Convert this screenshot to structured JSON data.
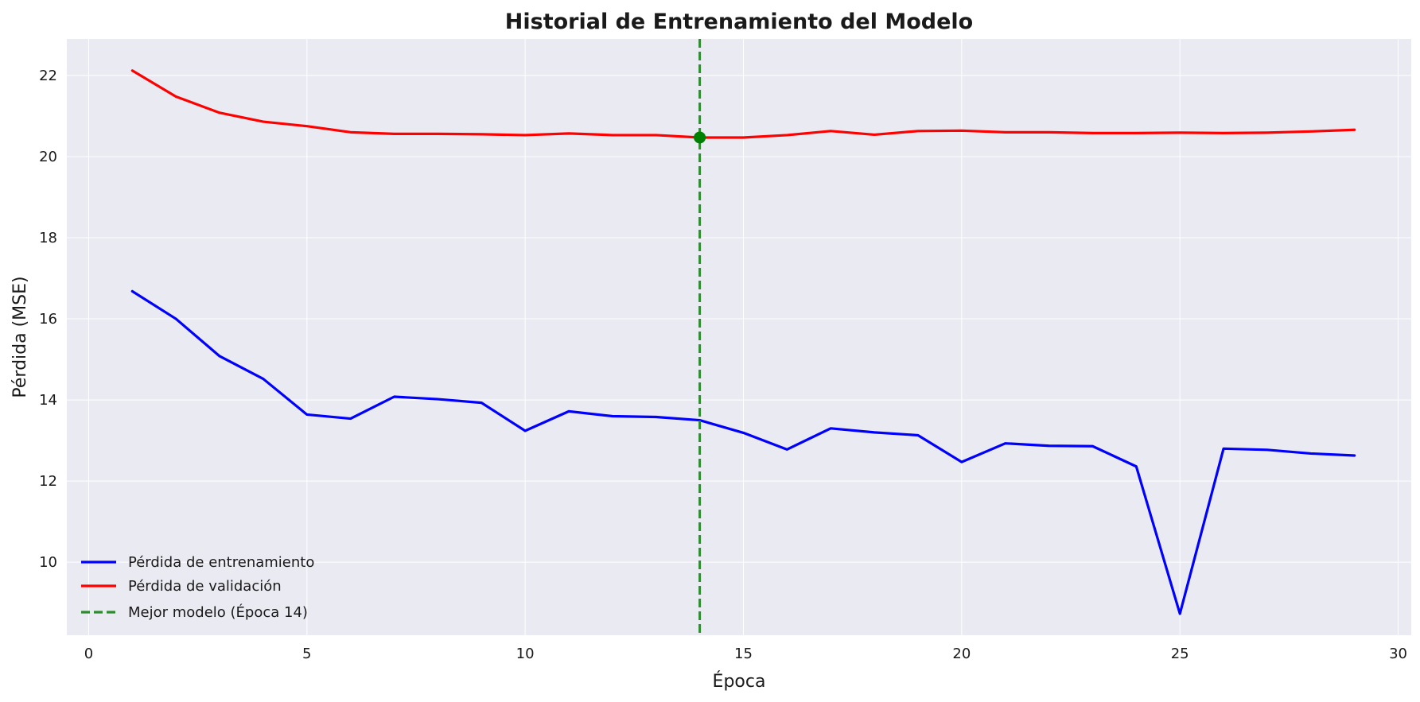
{
  "chart_data": {
    "type": "line",
    "title": "Historial de Entrenamiento del Modelo",
    "xlabel": "Época",
    "ylabel": "Pérdida (MSE)",
    "xlim": [
      -0.5,
      30.3
    ],
    "ylim": [
      8.2,
      22.9
    ],
    "xticks": [
      0,
      5,
      10,
      15,
      20,
      25,
      30
    ],
    "yticks": [
      10,
      12,
      14,
      16,
      18,
      20,
      22
    ],
    "grid": true,
    "legend_position": "lower-left",
    "x": [
      1,
      2,
      3,
      4,
      5,
      6,
      7,
      8,
      9,
      10,
      11,
      12,
      13,
      14,
      15,
      16,
      17,
      18,
      19,
      20,
      21,
      22,
      23,
      24,
      25,
      26,
      27,
      28,
      29
    ],
    "series": [
      {
        "name": "Pérdida de entrenamiento",
        "color": "#0000ff",
        "values": [
          16.68,
          16.0,
          15.08,
          14.52,
          13.64,
          13.54,
          14.08,
          14.02,
          13.93,
          13.24,
          13.72,
          13.6,
          13.58,
          13.5,
          13.19,
          12.78,
          13.3,
          13.2,
          13.13,
          12.47,
          12.93,
          12.87,
          12.86,
          12.36,
          8.73,
          12.8,
          12.77,
          12.68,
          12.63
        ]
      },
      {
        "name": "Pérdida de validación",
        "color": "#ff0000",
        "values": [
          22.12,
          21.48,
          21.08,
          20.86,
          20.75,
          20.6,
          20.56,
          20.56,
          20.55,
          20.53,
          20.57,
          20.53,
          20.53,
          20.47,
          20.47,
          20.53,
          20.63,
          20.54,
          20.63,
          20.64,
          20.6,
          20.6,
          20.58,
          20.58,
          20.59,
          20.58,
          20.59,
          20.62,
          20.66
        ]
      }
    ],
    "best_model": {
      "label": "Mejor modelo (Época 14)",
      "epoch": 14,
      "value": 20.47,
      "line_color": "#2e8b2e",
      "marker_color": "#008000"
    },
    "background_color": "#eaeaf2",
    "grid_color": "#ffffff"
  }
}
